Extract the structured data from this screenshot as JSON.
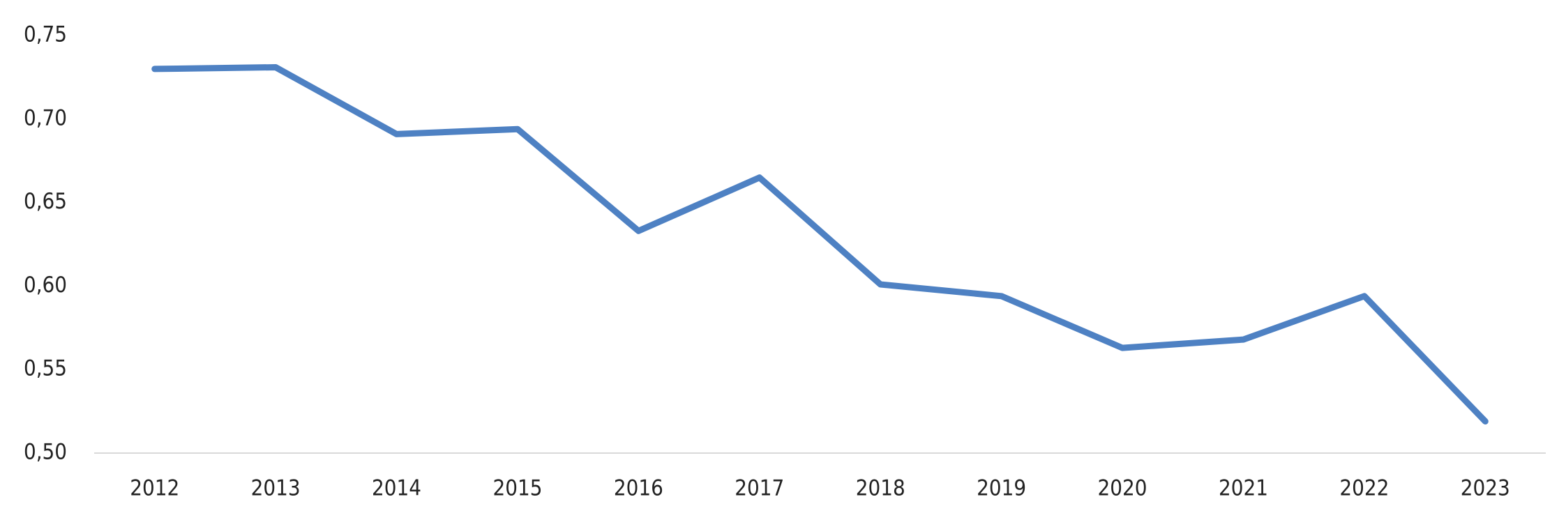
{
  "chart_data": {
    "type": "line",
    "categories": [
      "2012",
      "2013",
      "2014",
      "2015",
      "2016",
      "2017",
      "2018",
      "2019",
      "2020",
      "2021",
      "2022",
      "2023"
    ],
    "values": [
      0.73,
      0.731,
      0.691,
      0.694,
      0.633,
      0.665,
      0.601,
      0.594,
      0.563,
      0.568,
      0.594,
      0.519
    ],
    "color": "#4e81c3",
    "ylim": [
      0.5,
      0.75
    ],
    "yticks": [
      {
        "value": 0.5,
        "label": "0,50"
      },
      {
        "value": 0.55,
        "label": "0,55"
      },
      {
        "value": 0.6,
        "label": "0,60"
      },
      {
        "value": 0.65,
        "label": "0,65"
      },
      {
        "value": 0.7,
        "label": "0,70"
      },
      {
        "value": 0.75,
        "label": "0,75"
      }
    ],
    "grid": false
  }
}
